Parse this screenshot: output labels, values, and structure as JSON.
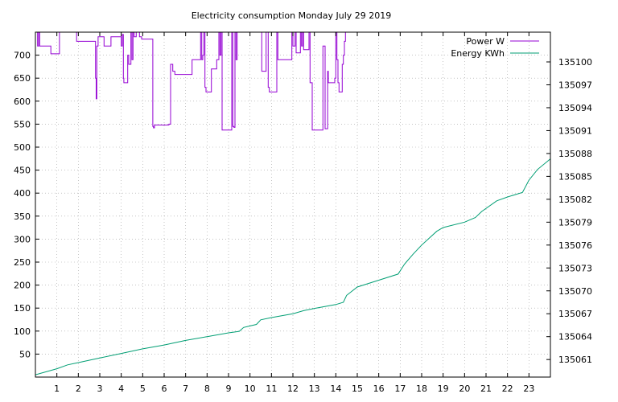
{
  "chart_data": {
    "type": "line",
    "title": "Electricity consumption Monday July 29 2019",
    "xlabel": "",
    "ylabel": "",
    "y2label": "",
    "xlim": [
      0,
      24
    ],
    "ylim": [
      0,
      750
    ],
    "y2lim": [
      135058.7,
      135103.9
    ],
    "grid": true,
    "legend_position": "top-right",
    "x_ticks": [
      1,
      2,
      3,
      4,
      5,
      6,
      7,
      8,
      9,
      10,
      11,
      12,
      13,
      14,
      15,
      16,
      17,
      18,
      19,
      20,
      21,
      22,
      23
    ],
    "x_tick_labels": [
      "1",
      "2",
      "3",
      "4",
      "5",
      "6",
      "7",
      "8",
      "9",
      "10",
      "11",
      "12",
      "13",
      "14",
      "15",
      "16",
      "17",
      "18",
      "19",
      "20",
      "21",
      "22",
      "23"
    ],
    "y_ticks": [
      50,
      100,
      150,
      200,
      250,
      300,
      350,
      400,
      450,
      500,
      550,
      600,
      650,
      700
    ],
    "y_tick_labels": [
      "50",
      "100",
      "150",
      "200",
      "250",
      "300",
      "350",
      "400",
      "450",
      "500",
      "550",
      "600",
      "650",
      "700"
    ],
    "y2_ticks": [
      135061,
      135064,
      135067,
      135070,
      135073,
      135076,
      135079,
      135082,
      135085,
      135088,
      135091,
      135094,
      135097,
      135100
    ],
    "y2_tick_labels": [
      "135061",
      "135064",
      "135067",
      "135070",
      "135073",
      "135076",
      "135079",
      "135082",
      "135085",
      "135088",
      "135091",
      "135094",
      "135097",
      "135100"
    ],
    "series": [
      {
        "name": "Power W",
        "axis": "left",
        "color": "#9400d3",
        "step": true,
        "points": [
          [
            0.0,
            750
          ],
          [
            0.1,
            720
          ],
          [
            0.15,
            750
          ],
          [
            0.2,
            720
          ],
          [
            0.7,
            720
          ],
          [
            0.72,
            703
          ],
          [
            1.1,
            703
          ],
          [
            1.12,
            750
          ],
          [
            1.9,
            750
          ],
          [
            1.92,
            730
          ],
          [
            2.7,
            730
          ],
          [
            2.75,
            730
          ],
          [
            2.8,
            650
          ],
          [
            2.83,
            605
          ],
          [
            2.86,
            720
          ],
          [
            2.9,
            720
          ],
          [
            2.92,
            740
          ],
          [
            3.2,
            720
          ],
          [
            3.5,
            720
          ],
          [
            3.52,
            740
          ],
          [
            3.95,
            740
          ],
          [
            4.0,
            720
          ],
          [
            4.05,
            745
          ],
          [
            4.1,
            650
          ],
          [
            4.12,
            640
          ],
          [
            4.25,
            640
          ],
          [
            4.3,
            700
          ],
          [
            4.35,
            680
          ],
          [
            4.45,
            750
          ],
          [
            4.5,
            690
          ],
          [
            4.55,
            750
          ],
          [
            4.6,
            740
          ],
          [
            4.7,
            750
          ],
          [
            4.85,
            740
          ],
          [
            4.95,
            735
          ],
          [
            5.05,
            735
          ],
          [
            5.1,
            735
          ],
          [
            5.45,
            735
          ],
          [
            5.47,
            545
          ],
          [
            5.5,
            542
          ],
          [
            5.55,
            548
          ],
          [
            6.2,
            548
          ],
          [
            6.22,
            550
          ],
          [
            6.3,
            680
          ],
          [
            6.4,
            665
          ],
          [
            6.5,
            658
          ],
          [
            7.2,
            658
          ],
          [
            7.3,
            690
          ],
          [
            7.6,
            690
          ],
          [
            7.7,
            750
          ],
          [
            7.75,
            690
          ],
          [
            7.8,
            700
          ],
          [
            7.85,
            750
          ],
          [
            7.9,
            630
          ],
          [
            7.95,
            620
          ],
          [
            8.1,
            620
          ],
          [
            8.2,
            670
          ],
          [
            8.4,
            670
          ],
          [
            8.45,
            690
          ],
          [
            8.55,
            750
          ],
          [
            8.6,
            700
          ],
          [
            8.65,
            750
          ],
          [
            8.7,
            537
          ],
          [
            8.8,
            537
          ],
          [
            9.1,
            537
          ],
          [
            9.15,
            750
          ],
          [
            9.2,
            545
          ],
          [
            9.25,
            543
          ],
          [
            9.3,
            750
          ],
          [
            9.35,
            690
          ],
          [
            9.4,
            750
          ],
          [
            9.5,
            750
          ],
          [
            10.1,
            750
          ],
          [
            10.2,
            750
          ],
          [
            10.5,
            750
          ],
          [
            10.55,
            665
          ],
          [
            10.7,
            665
          ],
          [
            10.75,
            750
          ],
          [
            10.85,
            630
          ],
          [
            10.9,
            620
          ],
          [
            11.2,
            620
          ],
          [
            11.25,
            750
          ],
          [
            11.3,
            690
          ],
          [
            11.9,
            690
          ],
          [
            11.95,
            750
          ],
          [
            12.0,
            720
          ],
          [
            12.05,
            720
          ],
          [
            12.1,
            750
          ],
          [
            12.15,
            705
          ],
          [
            12.3,
            705
          ],
          [
            12.35,
            750
          ],
          [
            12.4,
            720
          ],
          [
            12.45,
            750
          ],
          [
            12.5,
            712
          ],
          [
            12.6,
            712
          ],
          [
            12.7,
            712
          ],
          [
            12.75,
            750
          ],
          [
            12.8,
            640
          ],
          [
            12.9,
            537
          ],
          [
            13.1,
            537
          ],
          [
            13.35,
            537
          ],
          [
            13.4,
            720
          ],
          [
            13.5,
            540
          ],
          [
            13.6,
            540
          ],
          [
            13.62,
            665
          ],
          [
            13.65,
            640
          ],
          [
            13.9,
            640
          ],
          [
            13.95,
            650
          ],
          [
            14.0,
            750
          ],
          [
            14.05,
            690
          ],
          [
            14.1,
            640
          ],
          [
            14.15,
            620
          ],
          [
            14.25,
            620
          ],
          [
            14.3,
            680
          ],
          [
            14.35,
            700
          ],
          [
            14.4,
            730
          ],
          [
            14.45,
            750
          ],
          [
            24.0,
            750
          ]
        ]
      },
      {
        "name": "Energy KWh",
        "axis": "right",
        "color": "#009e73",
        "step": false,
        "points": [
          [
            0,
            135059.0
          ],
          [
            1,
            135059.8
          ],
          [
            1.5,
            135060.3
          ],
          [
            2,
            135060.6
          ],
          [
            3,
            135061.2
          ],
          [
            4,
            135061.8
          ],
          [
            5,
            135062.4
          ],
          [
            6,
            135062.9
          ],
          [
            7,
            135063.5
          ],
          [
            8,
            135064.0
          ],
          [
            9,
            135064.5
          ],
          [
            9.5,
            135064.7
          ],
          [
            9.7,
            135065.2
          ],
          [
            10,
            135065.4
          ],
          [
            10.3,
            135065.6
          ],
          [
            10.5,
            135066.2
          ],
          [
            11,
            135066.5
          ],
          [
            12,
            135067.0
          ],
          [
            12.5,
            135067.4
          ],
          [
            13,
            135067.7
          ],
          [
            14,
            135068.2
          ],
          [
            14.35,
            135068.5
          ],
          [
            14.5,
            135069.4
          ],
          [
            15,
            135070.5
          ],
          [
            16,
            135071.4
          ],
          [
            16.9,
            135072.2
          ],
          [
            17.2,
            135073.5
          ],
          [
            17.6,
            135074.8
          ],
          [
            18,
            135076.0
          ],
          [
            18.7,
            135077.8
          ],
          [
            19,
            135078.3
          ],
          [
            20,
            135079.0
          ],
          [
            20.5,
            135079.6
          ],
          [
            20.8,
            135080.4
          ],
          [
            21.5,
            135081.8
          ],
          [
            22,
            135082.3
          ],
          [
            22.7,
            135082.9
          ],
          [
            23,
            135084.5
          ],
          [
            23.4,
            135085.9
          ],
          [
            24,
            135087.3
          ]
        ]
      }
    ]
  }
}
